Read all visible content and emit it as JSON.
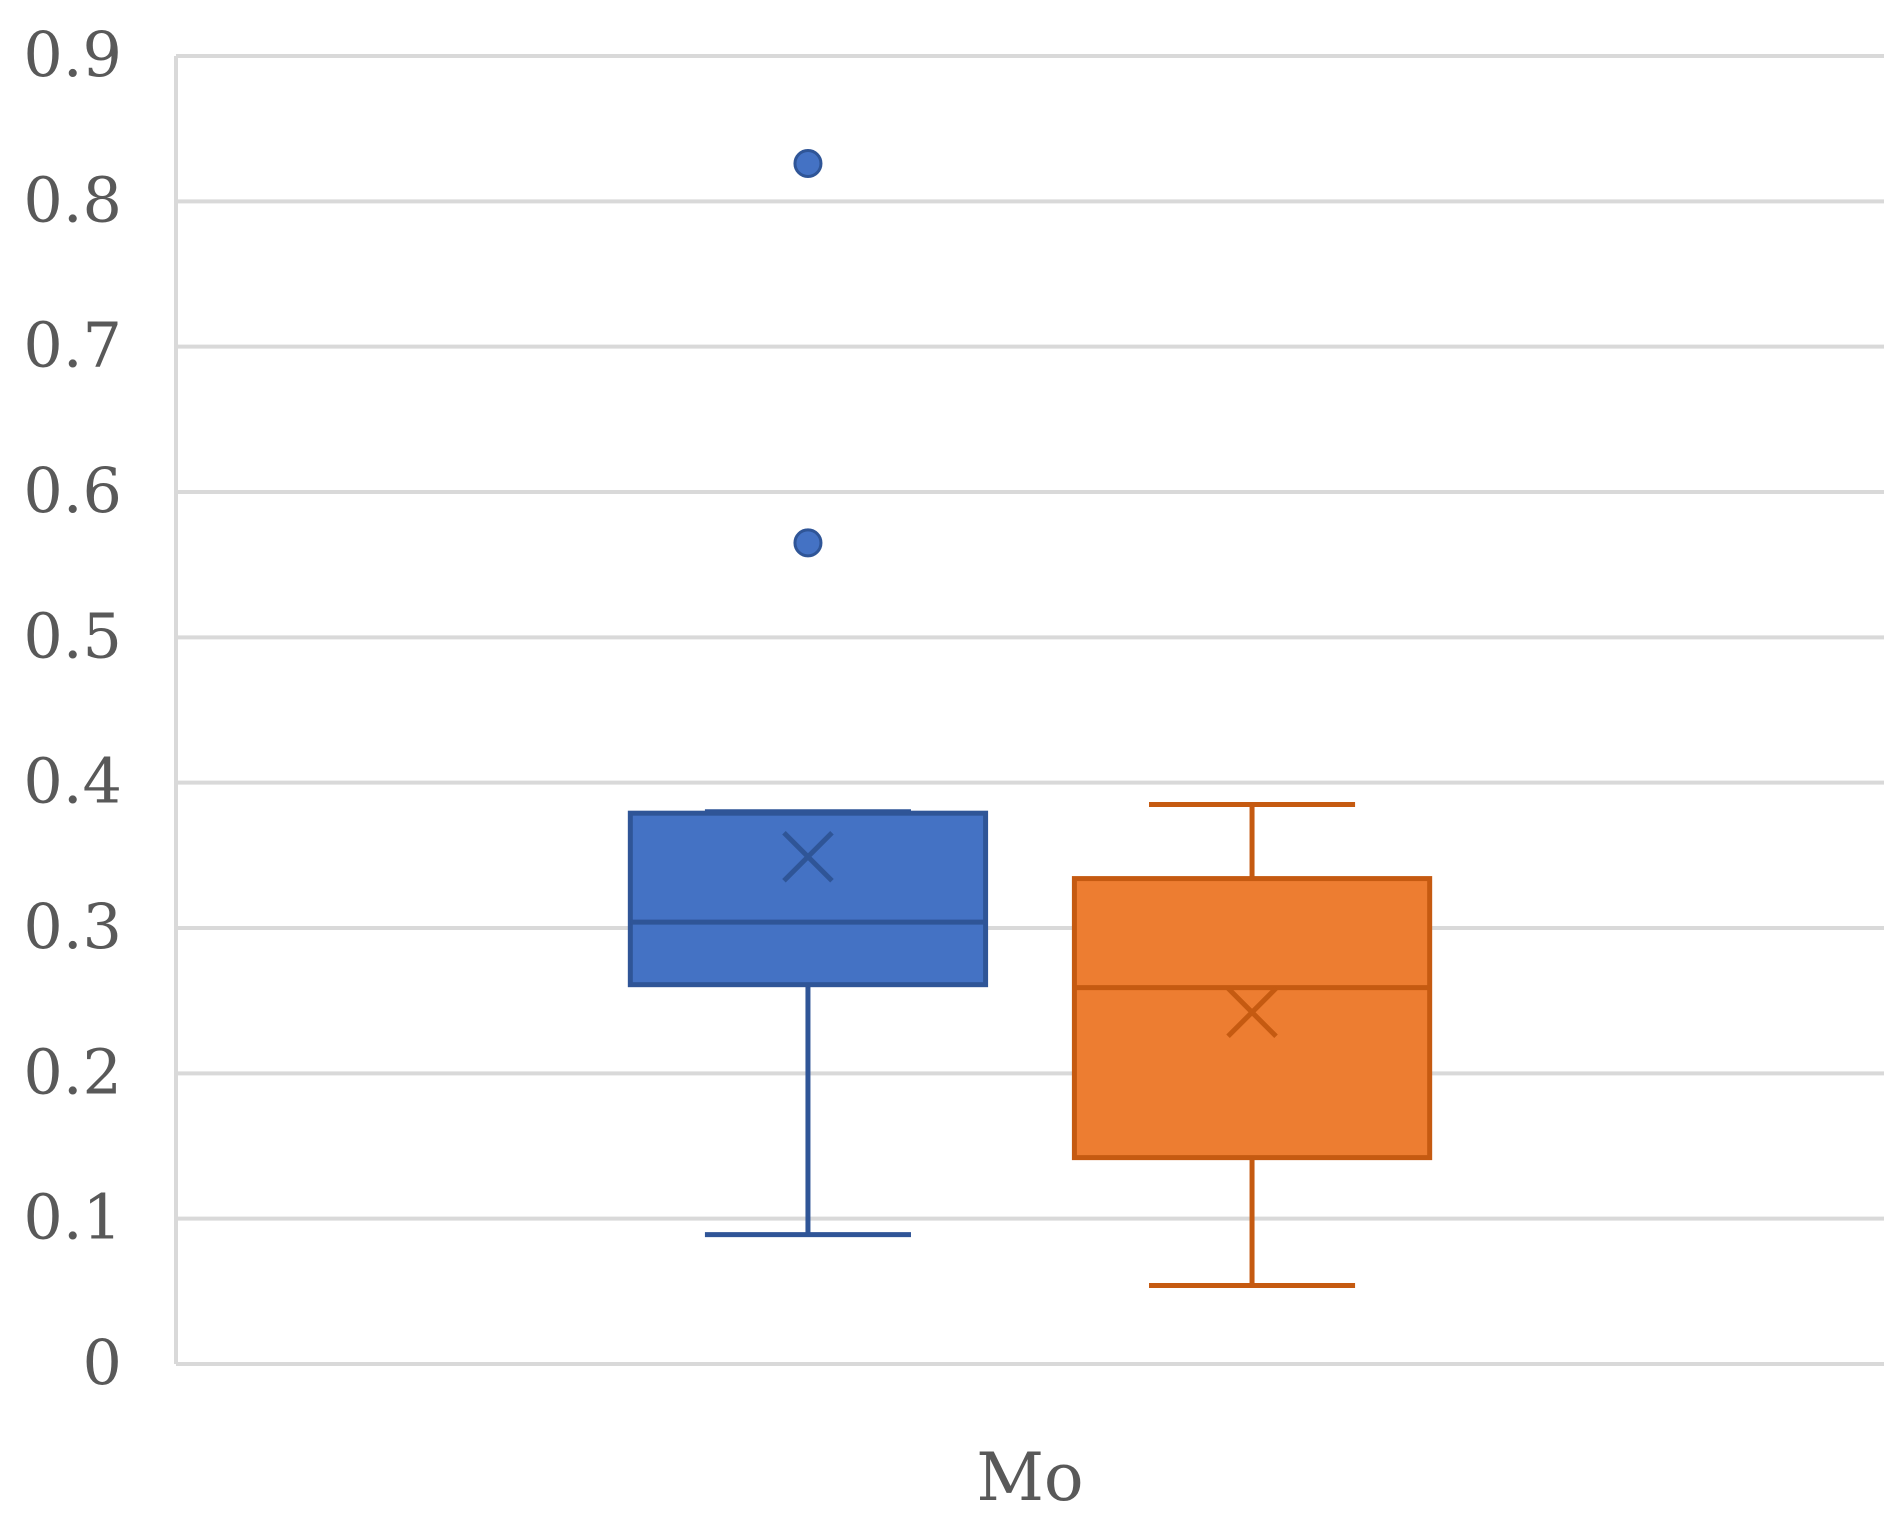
{
  "chart_data": {
    "type": "boxplot",
    "categories": [
      "Mo"
    ],
    "ylim": [
      0,
      0.9
    ],
    "yticks": [
      "0",
      "0.1",
      "0.2",
      "0.3",
      "0.4",
      "0.5",
      "0.6",
      "0.7",
      "0.8",
      "0.9"
    ],
    "grid": true,
    "series": [
      {
        "color": "#4472C4",
        "stroke": "#2F5597",
        "min": 0.089,
        "q1": 0.261,
        "median": 0.304,
        "q3": 0.379,
        "max": 0.38,
        "mean": 0.349,
        "outliers": [
          0.826,
          0.565
        ]
      },
      {
        "color": "#ED7D31",
        "stroke": "#C55A11",
        "min": 0.054,
        "q1": 0.142,
        "median": 0.259,
        "q3": 0.334,
        "max": 0.385,
        "mean": 0.242,
        "outliers": []
      }
    ]
  }
}
